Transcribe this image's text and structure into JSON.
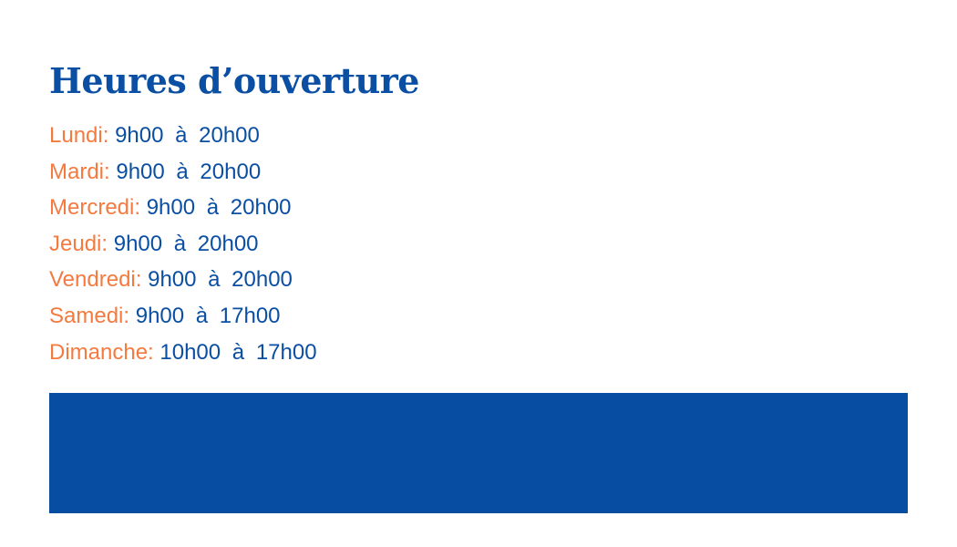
{
  "title": "Heures d’ouverture",
  "colors": {
    "primary": "#0a4fa3",
    "accent": "#f47a3f",
    "banner": "#074ea3"
  },
  "hours": [
    {
      "day": "Lundi:",
      "time": "9h00 à 20h00"
    },
    {
      "day": "Mardi:",
      "time": "9h00 à 20h00"
    },
    {
      "day": "Mercredi:",
      "time": "9h00 à 20h00"
    },
    {
      "day": "Jeudi:",
      "time": "9h00 à 20h00"
    },
    {
      "day": "Vendredi:",
      "time": "9h00 à 20h00"
    },
    {
      "day": "Samedi:",
      "time": "9h00 à 17h00"
    },
    {
      "day": "Dimanche:",
      "time": "10h00 à 17h00"
    }
  ]
}
